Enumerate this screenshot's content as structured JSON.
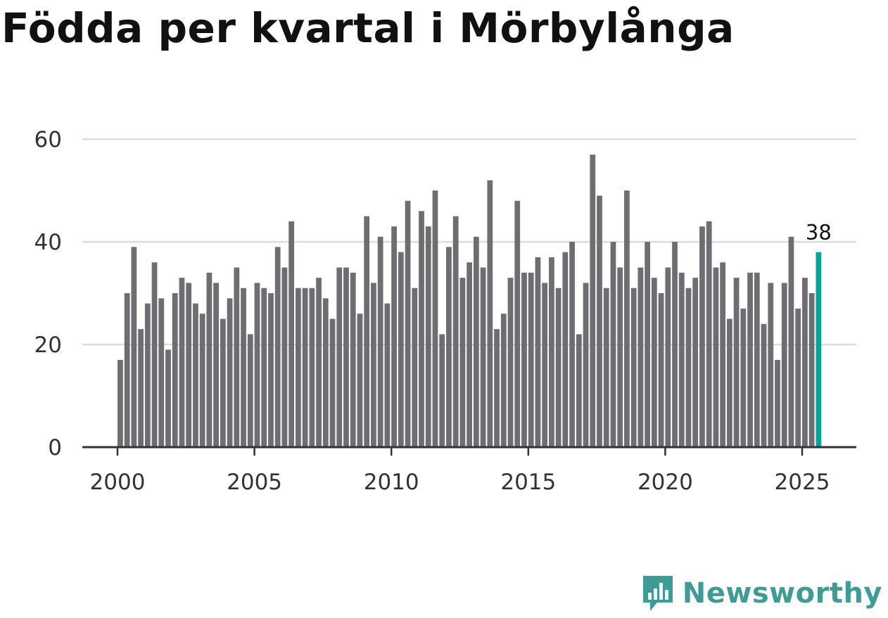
{
  "brand": {
    "name": "Newsworthy",
    "color": "#3e9c96",
    "icon": "newsworthy-logo-icon"
  },
  "chart_data": {
    "type": "bar",
    "title": "Födda per kvartal i Mörbylånga",
    "xlabel": "",
    "ylabel": "",
    "ylim": [
      0,
      60
    ],
    "yticks": [
      0,
      20,
      40,
      60
    ],
    "xticks": [
      2000,
      2005,
      2010,
      2015,
      2020,
      2025
    ],
    "xticks_labels": [
      "2000",
      "2005",
      "2010",
      "2015",
      "2020",
      "2025"
    ],
    "yticks_labels": [
      "0",
      "20",
      "40",
      "60"
    ],
    "grid": true,
    "bar_color": "#6e6d72",
    "highlight_color": "#0aa39a",
    "start_year": 2000,
    "start_quarter": 1,
    "values": [
      17,
      30,
      39,
      23,
      28,
      36,
      29,
      19,
      30,
      33,
      32,
      28,
      26,
      34,
      32,
      25,
      29,
      35,
      31,
      22,
      32,
      31,
      30,
      39,
      35,
      44,
      31,
      31,
      31,
      33,
      29,
      25,
      35,
      35,
      34,
      26,
      45,
      32,
      41,
      28,
      43,
      38,
      48,
      31,
      46,
      43,
      50,
      22,
      39,
      45,
      33,
      36,
      41,
      35,
      52,
      23,
      26,
      33,
      48,
      34,
      34,
      37,
      32,
      37,
      31,
      38,
      40,
      22,
      32,
      57,
      49,
      31,
      40,
      35,
      50,
      31,
      35,
      40,
      33,
      30,
      35,
      40,
      34,
      31,
      33,
      43,
      44,
      35,
      36,
      25,
      33,
      27,
      34,
      34,
      24,
      32,
      17,
      32,
      41,
      27,
      33,
      30,
      38
    ],
    "annotation": {
      "text": "38",
      "index": 102
    }
  }
}
